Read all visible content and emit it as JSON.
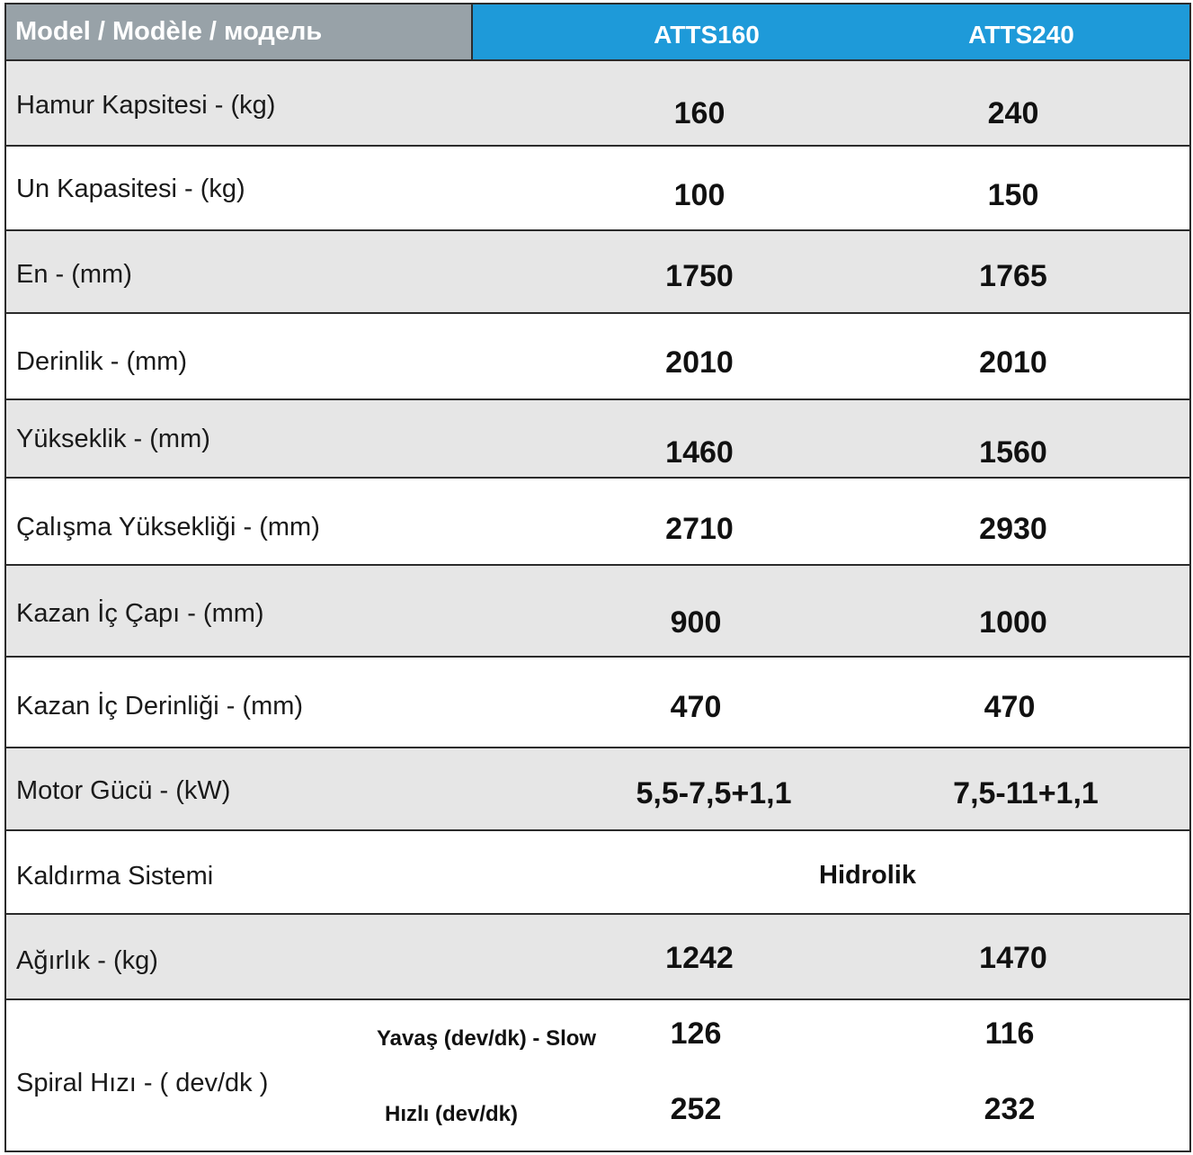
{
  "header": {
    "title": "Model / Modèle / модель",
    "models": [
      "ATTS160",
      "ATTS240"
    ]
  },
  "rows": [
    {
      "label": "Hamur Kapsitesi  - (kg)",
      "v1": "160",
      "v2": "240"
    },
    {
      "label": "Un Kapasitesi  - (kg)",
      "v1": "100",
      "v2": "150"
    },
    {
      "label": "En - (mm)",
      "v1": "1750",
      "v2": "1765"
    },
    {
      "label": "Derinlik - (mm)",
      "v1": "2010",
      "v2": "2010"
    },
    {
      "label": "Yükseklik - (mm)",
      "v1": "1460",
      "v2": "1560"
    },
    {
      "label": "Çalışma Yüksekliği - (mm)",
      "v1": "2710",
      "v2": "2930"
    },
    {
      "label": "Kazan İç Çapı - (mm)",
      "v1": "900",
      "v2": "1000"
    },
    {
      "label": "Kazan İç Derinliği  - (mm)",
      "v1": "470",
      "v2": "470"
    },
    {
      "label": "Motor Gücü  - (kW)",
      "v1": "5,5-7,5+1,1",
      "v2": "7,5-11+1,1"
    },
    {
      "label": "Kaldırma Sistemi",
      "merged": "Hidrolik"
    },
    {
      "label": "Ağırlık - (kg)",
      "v1": "1242",
      "v2": "1470"
    }
  ],
  "spiral": {
    "label": "Spiral Hızı - ( dev/dk )",
    "slow_label": "Yavaş (dev/dk) - Slow",
    "fast_label": "Hızlı (dev/dk)",
    "slow_v1": "126",
    "slow_v2": "116",
    "fast_v1": "252",
    "fast_v2": "232"
  },
  "colors": {
    "header_left_bg": "#98a2a8",
    "header_right_bg": "#1e9ad9",
    "row_alt_bg": "#e6e6e6",
    "border": "#2b2b2b"
  }
}
